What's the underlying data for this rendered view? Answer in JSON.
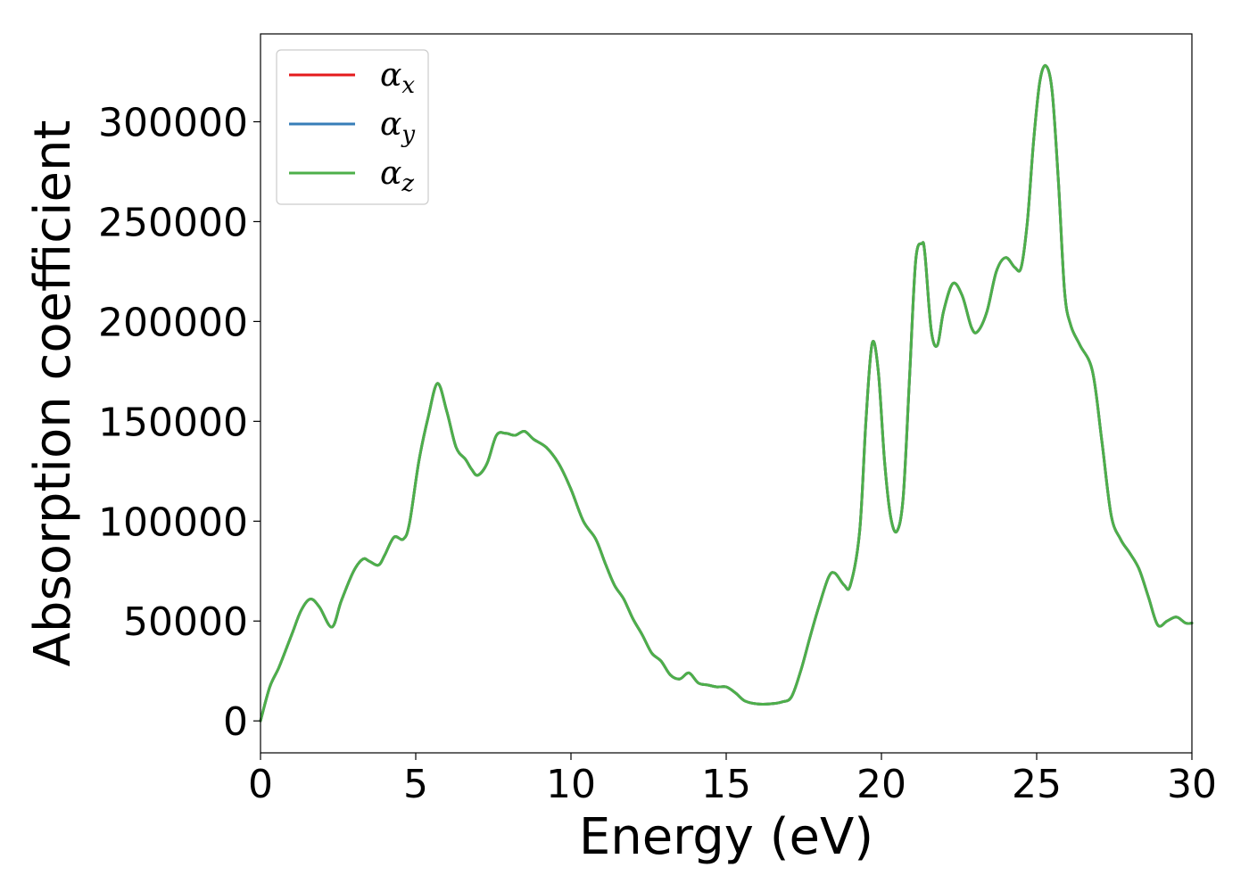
{
  "chart_data": {
    "type": "line",
    "xlabel": "Energy (eV)",
    "ylabel": "Absorption coefficient",
    "xlim": [
      0,
      30
    ],
    "ylim": [
      -16000,
      344000
    ],
    "xticks": [
      0,
      5,
      10,
      15,
      20,
      25,
      30
    ],
    "yticks": [
      0,
      50000,
      100000,
      150000,
      200000,
      250000,
      300000
    ],
    "grid": false,
    "legend_position": "top-left",
    "series": [
      {
        "name": "x",
        "legend_symbol": "α",
        "color": "#e41a1c",
        "x": [
          0,
          0.3,
          0.6,
          1.0,
          1.3,
          1.6,
          1.9,
          2.3,
          2.6,
          3.0,
          3.3,
          3.5,
          3.8,
          4.0,
          4.3,
          4.6,
          4.8,
          5.1,
          5.4,
          5.7,
          6.0,
          6.3,
          6.6,
          6.8,
          7.0,
          7.3,
          7.6,
          7.9,
          8.2,
          8.5,
          8.8,
          9.2,
          9.6,
          10.0,
          10.4,
          10.8,
          11.1,
          11.4,
          11.7,
          12.0,
          12.3,
          12.6,
          12.9,
          13.2,
          13.5,
          13.8,
          14.1,
          14.4,
          14.7,
          15.0,
          15.3,
          15.6,
          16.0,
          16.4,
          16.8,
          17.1,
          17.4,
          17.7,
          18.0,
          18.3,
          18.5,
          18.8,
          19.0,
          19.3,
          19.5,
          19.7,
          19.9,
          20.1,
          20.3,
          20.5,
          20.7,
          20.9,
          21.1,
          21.3,
          21.4,
          21.6,
          21.8,
          22.0,
          22.3,
          22.6,
          22.9,
          23.1,
          23.4,
          23.7,
          24.0,
          24.3,
          24.5,
          24.7,
          24.9,
          25.1,
          25.3,
          25.5,
          25.7,
          25.9,
          26.1,
          26.4,
          26.8,
          27.1,
          27.4,
          27.7,
          28.0,
          28.3,
          28.6,
          28.9,
          29.2,
          29.5,
          29.8,
          30.0
        ],
        "y": [
          0,
          17000,
          27000,
          43000,
          55000,
          61000,
          57000,
          47000,
          60000,
          75000,
          81000,
          80000,
          78000,
          83000,
          92000,
          91000,
          99000,
          130000,
          152000,
          169000,
          155000,
          137000,
          131000,
          126000,
          123000,
          129000,
          143000,
          144000,
          143000,
          145000,
          141000,
          137000,
          129000,
          116000,
          100000,
          91000,
          79000,
          68000,
          61000,
          51000,
          43000,
          34000,
          30000,
          23000,
          21000,
          24000,
          19000,
          18000,
          17000,
          17000,
          14000,
          10000,
          8500,
          8500,
          9500,
          12000,
          25000,
          42000,
          58000,
          72000,
          74000,
          68000,
          68000,
          95000,
          150000,
          189000,
          175000,
          130000,
          102000,
          95000,
          112000,
          170000,
          230000,
          239000,
          234000,
          196000,
          188000,
          205000,
          219000,
          213000,
          197000,
          195000,
          205000,
          225000,
          232000,
          227000,
          227000,
          250000,
          290000,
          320000,
          328000,
          315000,
          270000,
          215000,
          198000,
          188000,
          175000,
          140000,
          103000,
          91000,
          84000,
          76000,
          62000,
          48000,
          50000,
          52000,
          49000,
          49000
        ]
      },
      {
        "name": "y",
        "legend_symbol": "α",
        "color": "#377eb8",
        "x": [
          0,
          0.3,
          0.6,
          1.0,
          1.3,
          1.6,
          1.9,
          2.3,
          2.6,
          3.0,
          3.3,
          3.5,
          3.8,
          4.0,
          4.3,
          4.6,
          4.8,
          5.1,
          5.4,
          5.7,
          6.0,
          6.3,
          6.6,
          6.8,
          7.0,
          7.3,
          7.6,
          7.9,
          8.2,
          8.5,
          8.8,
          9.2,
          9.6,
          10.0,
          10.4,
          10.8,
          11.1,
          11.4,
          11.7,
          12.0,
          12.3,
          12.6,
          12.9,
          13.2,
          13.5,
          13.8,
          14.1,
          14.4,
          14.7,
          15.0,
          15.3,
          15.6,
          16.0,
          16.4,
          16.8,
          17.1,
          17.4,
          17.7,
          18.0,
          18.3,
          18.5,
          18.8,
          19.0,
          19.3,
          19.5,
          19.7,
          19.9,
          20.1,
          20.3,
          20.5,
          20.7,
          20.9,
          21.1,
          21.3,
          21.4,
          21.6,
          21.8,
          22.0,
          22.3,
          22.6,
          22.9,
          23.1,
          23.4,
          23.7,
          24.0,
          24.3,
          24.5,
          24.7,
          24.9,
          25.1,
          25.3,
          25.5,
          25.7,
          25.9,
          26.1,
          26.4,
          26.8,
          27.1,
          27.4,
          27.7,
          28.0,
          28.3,
          28.6,
          28.9,
          29.2,
          29.5,
          29.8,
          30.0
        ],
        "y": [
          0,
          17000,
          27000,
          43000,
          55000,
          61000,
          57000,
          47000,
          60000,
          75000,
          81000,
          80000,
          78000,
          83000,
          92000,
          91000,
          99000,
          130000,
          152000,
          169000,
          155000,
          137000,
          131000,
          126000,
          123000,
          129000,
          143000,
          144000,
          143000,
          145000,
          141000,
          137000,
          129000,
          116000,
          100000,
          91000,
          79000,
          68000,
          61000,
          51000,
          43000,
          34000,
          30000,
          23000,
          21000,
          24000,
          19000,
          18000,
          17000,
          17000,
          14000,
          10000,
          8500,
          8500,
          9500,
          12000,
          25000,
          42000,
          58000,
          72000,
          74000,
          68000,
          68000,
          95000,
          150000,
          189000,
          175000,
          130000,
          102000,
          95000,
          112000,
          170000,
          230000,
          239000,
          234000,
          196000,
          188000,
          205000,
          219000,
          213000,
          197000,
          195000,
          205000,
          225000,
          232000,
          227000,
          227000,
          250000,
          290000,
          320000,
          328000,
          315000,
          270000,
          215000,
          198000,
          188000,
          175000,
          140000,
          103000,
          91000,
          84000,
          76000,
          62000,
          48000,
          50000,
          52000,
          49000,
          49000
        ]
      },
      {
        "name": "z",
        "legend_symbol": "α",
        "color": "#4daf4a",
        "x": [
          0,
          0.3,
          0.6,
          1.0,
          1.3,
          1.6,
          1.9,
          2.3,
          2.6,
          3.0,
          3.3,
          3.5,
          3.8,
          4.0,
          4.3,
          4.6,
          4.8,
          5.1,
          5.4,
          5.7,
          6.0,
          6.3,
          6.6,
          6.8,
          7.0,
          7.3,
          7.6,
          7.9,
          8.2,
          8.5,
          8.8,
          9.2,
          9.6,
          10.0,
          10.4,
          10.8,
          11.1,
          11.4,
          11.7,
          12.0,
          12.3,
          12.6,
          12.9,
          13.2,
          13.5,
          13.8,
          14.1,
          14.4,
          14.7,
          15.0,
          15.3,
          15.6,
          16.0,
          16.4,
          16.8,
          17.1,
          17.4,
          17.7,
          18.0,
          18.3,
          18.5,
          18.8,
          19.0,
          19.3,
          19.5,
          19.7,
          19.9,
          20.1,
          20.3,
          20.5,
          20.7,
          20.9,
          21.1,
          21.3,
          21.4,
          21.6,
          21.8,
          22.0,
          22.3,
          22.6,
          22.9,
          23.1,
          23.4,
          23.7,
          24.0,
          24.3,
          24.5,
          24.7,
          24.9,
          25.1,
          25.3,
          25.5,
          25.7,
          25.9,
          26.1,
          26.4,
          26.8,
          27.1,
          27.4,
          27.7,
          28.0,
          28.3,
          28.6,
          28.9,
          29.2,
          29.5,
          29.8,
          30.0
        ],
        "y": [
          0,
          17000,
          27000,
          43000,
          55000,
          61000,
          57000,
          47000,
          60000,
          75000,
          81000,
          80000,
          78000,
          83000,
          92000,
          91000,
          99000,
          130000,
          152000,
          169000,
          155000,
          137000,
          131000,
          126000,
          123000,
          129000,
          143000,
          144000,
          143000,
          145000,
          141000,
          137000,
          129000,
          116000,
          100000,
          91000,
          79000,
          68000,
          61000,
          51000,
          43000,
          34000,
          30000,
          23000,
          21000,
          24000,
          19000,
          18000,
          17000,
          17000,
          14000,
          10000,
          8500,
          8500,
          9500,
          12000,
          25000,
          42000,
          58000,
          72000,
          74000,
          68000,
          68000,
          95000,
          150000,
          189000,
          175000,
          130000,
          102000,
          95000,
          112000,
          170000,
          230000,
          239000,
          234000,
          196000,
          188000,
          205000,
          219000,
          213000,
          197000,
          195000,
          205000,
          225000,
          232000,
          227000,
          227000,
          250000,
          290000,
          320000,
          328000,
          315000,
          270000,
          215000,
          198000,
          188000,
          175000,
          140000,
          103000,
          91000,
          84000,
          76000,
          62000,
          48000,
          50000,
          52000,
          49000,
          49000
        ]
      }
    ]
  }
}
